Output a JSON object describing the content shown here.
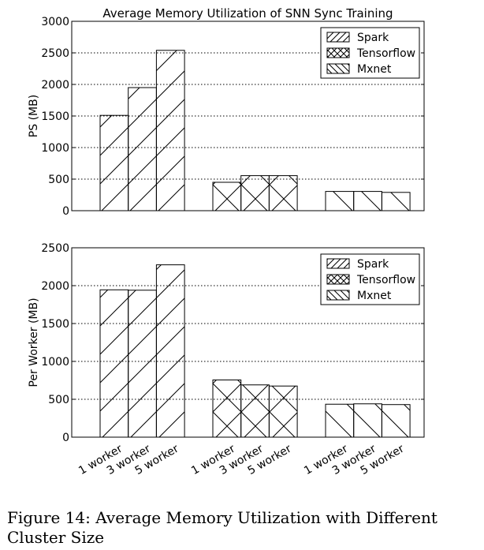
{
  "chart_data": [
    {
      "type": "bar",
      "title": "Average Memory Utilization of SNN Sync Training",
      "ylabel": "PS (MB)",
      "xlabel": "",
      "ylim": [
        0,
        3000
      ],
      "yticks": [
        0,
        500,
        1000,
        1500,
        2000,
        2500,
        3000
      ],
      "grid": true,
      "legend_position": "top-right",
      "groups": [
        "Spark",
        "Tensorflow",
        "Mxnet"
      ],
      "categories": [
        "1 worker",
        "3 worker",
        "5 worker"
      ],
      "series": [
        {
          "name": "Spark",
          "hatch": "forward-diagonal",
          "values": [
            1510,
            1950,
            2540
          ]
        },
        {
          "name": "Tensorflow",
          "hatch": "cross",
          "values": [
            450,
            555,
            555
          ]
        },
        {
          "name": "Mxnet",
          "hatch": "back-diagonal",
          "values": [
            305,
            305,
            290
          ]
        }
      ]
    },
    {
      "type": "bar",
      "title": "",
      "ylabel": "Per Worker (MB)",
      "xlabel": "",
      "ylim": [
        0,
        2500
      ],
      "yticks": [
        0,
        500,
        1000,
        1500,
        2000,
        2500
      ],
      "grid": true,
      "legend_position": "top-right",
      "groups": [
        "Spark",
        "Tensorflow",
        "Mxnet"
      ],
      "categories": [
        "1 worker",
        "3 worker",
        "5 worker"
      ],
      "series": [
        {
          "name": "Spark",
          "hatch": "forward-diagonal",
          "values": [
            1945,
            1940,
            2275
          ]
        },
        {
          "name": "Tensorflow",
          "hatch": "cross",
          "values": [
            755,
            690,
            675
          ]
        },
        {
          "name": "Mxnet",
          "hatch": "back-diagonal",
          "values": [
            435,
            440,
            430
          ]
        }
      ]
    }
  ],
  "caption": "Figure 14: Average Memory Utilization with Different Cluster Size"
}
